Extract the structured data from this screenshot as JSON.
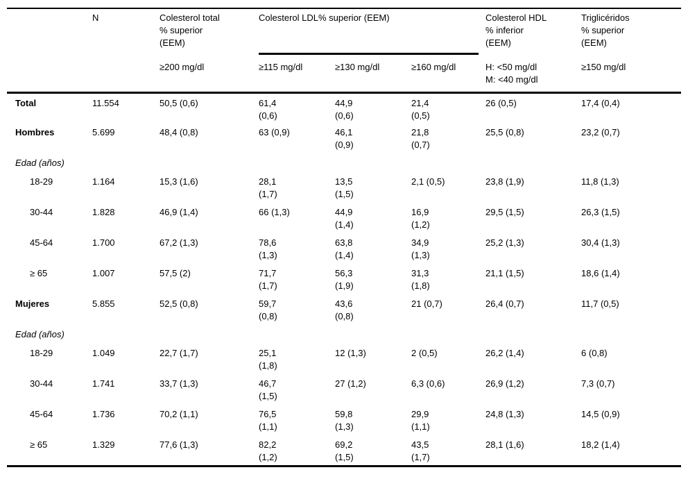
{
  "table": {
    "group_headers": [
      {
        "text": "",
        "colspan": 1,
        "name": "corner-header"
      },
      {
        "text": "N",
        "colspan": 1,
        "name": "header-n"
      },
      {
        "text": "Colesterol total\n% superior\n(EEM)",
        "colspan": 1,
        "name": "header-colesterol-total"
      },
      {
        "text": "Colesterol LDL% superior (EEM)",
        "colspan": 3,
        "underline": true,
        "name": "header-colesterol-ldl-group"
      },
      {
        "text": "Colesterol HDL\n% inferior\n(EEM)",
        "colspan": 1,
        "name": "header-colesterol-hdl"
      },
      {
        "text": "Triglicéridos\n% superior\n(EEM)",
        "colspan": 1,
        "name": "header-trigliceridos"
      }
    ],
    "threshold_headers": [
      {
        "text": "",
        "name": "threshold-empty-label"
      },
      {
        "text": "",
        "name": "threshold-empty-n"
      },
      {
        "text": "≥200 mg/dl",
        "name": "threshold-total-200"
      },
      {
        "text": "≥115 mg/dl",
        "name": "threshold-ldl-115"
      },
      {
        "text": "≥130 mg/dl",
        "name": "threshold-ldl-130"
      },
      {
        "text": "≥160 mg/dl",
        "name": "threshold-ldl-160"
      },
      {
        "text": "H: <50 mg/dl\nM: <40 mg/dl",
        "name": "threshold-hdl"
      },
      {
        "text": "≥150 mg/dl",
        "name": "threshold-tg-150"
      }
    ],
    "rows": [
      {
        "type": "data",
        "style": "bold",
        "label": "Total",
        "values": [
          "11.554",
          "50,5 (0,6)",
          "61,4\n(0,6)",
          "44,9\n(0,6)",
          "21,4\n(0,5)",
          "26 (0,5)",
          "17,4 (0,4)"
        ]
      },
      {
        "type": "data",
        "style": "bold",
        "label": "Hombres",
        "values": [
          "5.699",
          "48,4 (0,8)",
          "63 (0,9)",
          "46,1\n(0,9)",
          "21,8\n(0,7)",
          "25,5 (0,8)",
          "23,2 (0,7)"
        ]
      },
      {
        "type": "section",
        "label": "Edad (años)"
      },
      {
        "type": "data",
        "style": "indent",
        "label": "18-29",
        "values": [
          "1.164",
          "15,3 (1,6)",
          "28,1\n(1,7)",
          "13,5\n(1,5)",
          "2,1 (0,5)",
          "23,8 (1,9)",
          "11,8 (1,3)"
        ]
      },
      {
        "type": "data",
        "style": "indent",
        "label": "30-44",
        "values": [
          "1.828",
          "46,9 (1,4)",
          "66 (1,3)",
          "44,9\n(1,4)",
          "16,9\n(1,2)",
          "29,5 (1,5)",
          "26,3 (1,5)"
        ]
      },
      {
        "type": "data",
        "style": "indent",
        "label": "45-64",
        "values": [
          "1.700",
          "67,2 (1,3)",
          "78,6\n(1,3)",
          "63,8\n(1,4)",
          "34,9\n(1,3)",
          "25,2 (1,3)",
          "30,4 (1,3)"
        ]
      },
      {
        "type": "data",
        "style": "indent",
        "label": "≥ 65",
        "values": [
          "1.007",
          "57,5 (2)",
          "71,7\n(1,7)",
          "56,3\n(1,9)",
          "31,3\n(1,8)",
          "21,1 (1,5)",
          "18,6 (1,4)"
        ]
      },
      {
        "type": "data",
        "style": "bold",
        "label": "Mujeres",
        "values": [
          "5.855",
          "52,5 (0,8)",
          "59,7\n(0,8)",
          "43,6\n(0,8)",
          "21 (0,7)",
          "26,4 (0,7)",
          "11,7 (0,5)"
        ]
      },
      {
        "type": "section",
        "label": "Edad (años)"
      },
      {
        "type": "data",
        "style": "indent",
        "label": "18-29",
        "values": [
          "1.049",
          "22,7 (1,7)",
          "25,1\n(1,8)",
          "12 (1,3)",
          "2 (0,5)",
          "26,2 (1,4)",
          "6 (0,8)"
        ]
      },
      {
        "type": "data",
        "style": "indent",
        "label": "30-44",
        "values": [
          "1.741",
          "33,7 (1,3)",
          "46,7\n(1,5)",
          "27 (1,2)",
          "6,3 (0,6)",
          "26,9 (1,2)",
          "7,3 (0,7)"
        ]
      },
      {
        "type": "data",
        "style": "indent",
        "label": "45-64",
        "values": [
          "1.736",
          "70,2 (1,1)",
          "76,5\n(1,1)",
          "59,8\n(1,3)",
          "29,9\n(1,1)",
          "24,8 (1,3)",
          "14,5 (0,9)"
        ]
      },
      {
        "type": "data",
        "style": "indent",
        "label": "≥ 65",
        "values": [
          "1.329",
          "77,6 (1,3)",
          "82,2\n(1,2)",
          "69,2\n(1,5)",
          "43,5\n(1,7)",
          "28,1 (1,6)",
          "18,2 (1,4)"
        ]
      }
    ]
  }
}
